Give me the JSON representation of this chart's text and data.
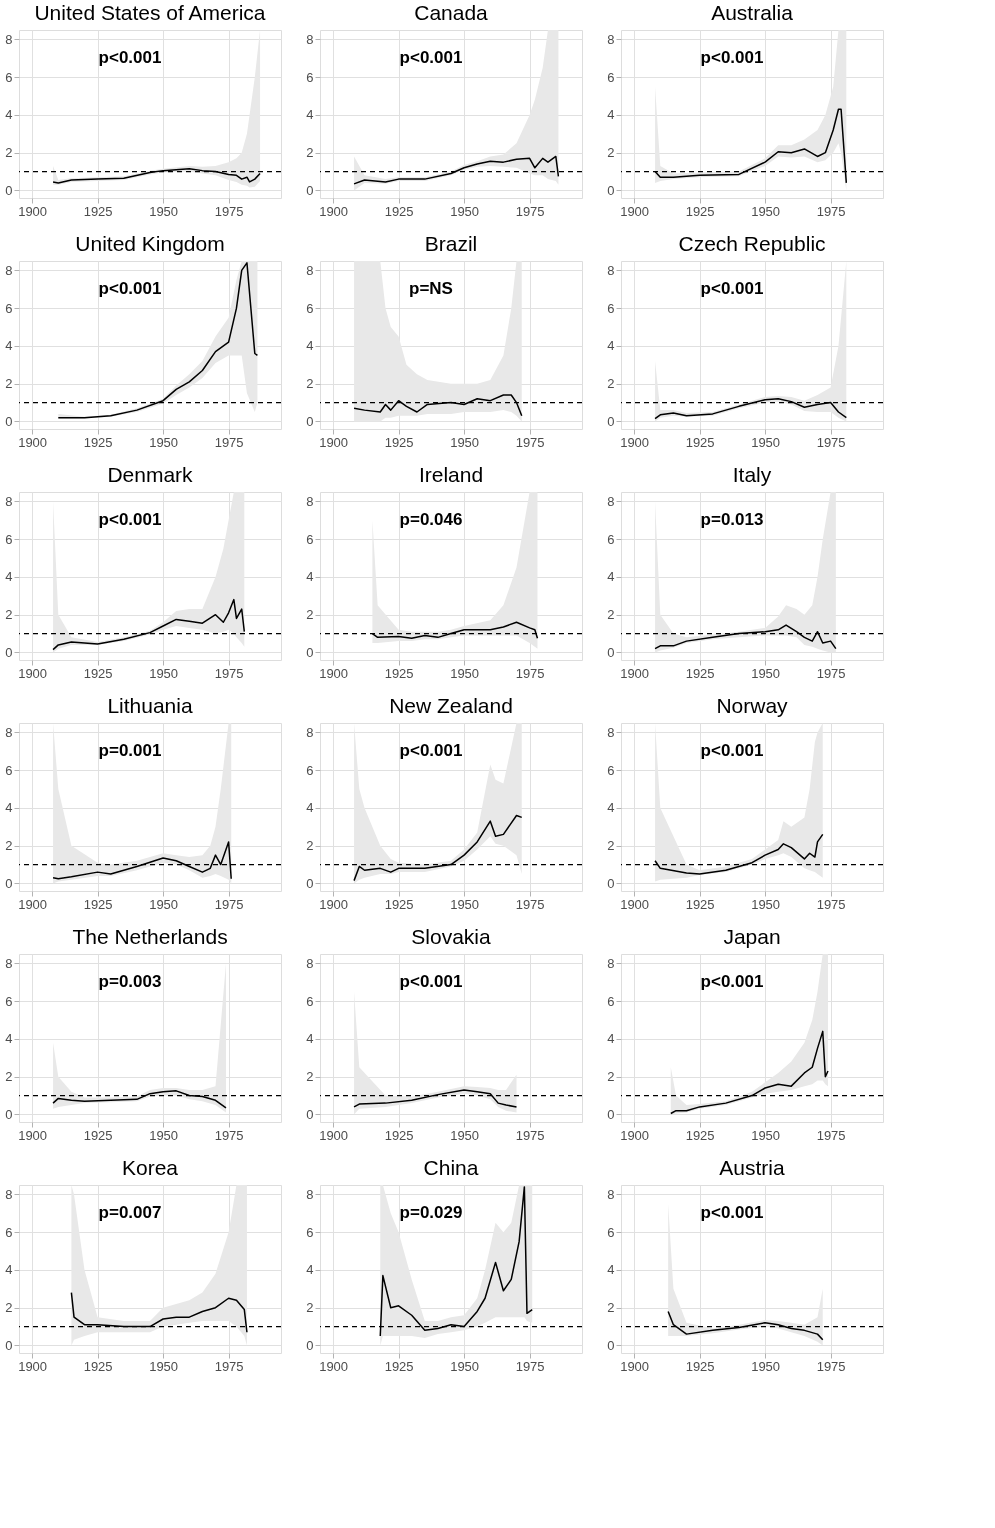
{
  "chart_data": [
    {
      "type": "line",
      "title": "United States of America",
      "annotations": [
        "p<0.001"
      ],
      "xlim": [
        1895,
        1995
      ],
      "ylim": [
        -0.4,
        8.5
      ],
      "xticks": [
        1900,
        1925,
        1950,
        1975
      ],
      "yticks": [
        0,
        2,
        4,
        6,
        8
      ],
      "grid": true,
      "ref_lines": [
        {
          "axis": "y",
          "value": 1,
          "line_style": "dashed",
          "color": "#000000"
        }
      ],
      "series": [
        {
          "color": "#000000",
          "x": [
            1908,
            1910,
            1915,
            1925,
            1935,
            1945,
            1950,
            1960,
            1965,
            1970,
            1975,
            1978,
            1980,
            1982,
            1983,
            1985,
            1987
          ],
          "values": [
            0.45,
            0.4,
            0.55,
            0.6,
            0.65,
            0.95,
            1.05,
            1.15,
            1.05,
            1.0,
            0.85,
            0.8,
            0.6,
            0.7,
            0.45,
            0.6,
            0.9
          ],
          "lower": [
            0.3,
            0.3,
            0.45,
            0.5,
            0.55,
            0.85,
            0.95,
            1.0,
            0.9,
            0.8,
            0.55,
            0.45,
            0.3,
            0.25,
            0.15,
            0.2,
            0.5
          ],
          "upper": [
            1.3,
            0.55,
            0.65,
            0.7,
            0.75,
            1.05,
            1.15,
            1.3,
            1.25,
            1.3,
            1.5,
            1.7,
            2.0,
            3,
            4,
            6,
            8.5
          ]
        }
      ]
    },
    {
      "type": "line",
      "title": "Canada",
      "annotations": [
        "p<0.001"
      ],
      "xlim": [
        1895,
        1995
      ],
      "ylim": [
        -0.4,
        8.5
      ],
      "xticks": [
        1900,
        1925,
        1950,
        1975
      ],
      "yticks": [
        0,
        2,
        4,
        6,
        8
      ],
      "grid": true,
      "ref_lines": [
        {
          "axis": "y",
          "value": 1,
          "line_style": "dashed",
          "color": "#000000"
        }
      ],
      "series": [
        {
          "color": "#000000",
          "x": [
            1908,
            1912,
            1920,
            1925,
            1935,
            1945,
            1950,
            1955,
            1960,
            1965,
            1970,
            1975,
            1977,
            1980,
            1982,
            1985,
            1986
          ],
          "values": [
            0.35,
            0.55,
            0.45,
            0.6,
            0.6,
            0.9,
            1.2,
            1.4,
            1.55,
            1.5,
            1.65,
            1.7,
            1.2,
            1.7,
            1.5,
            1.8,
            0.75
          ],
          "lower": [
            0,
            0.4,
            0.35,
            0.5,
            0.5,
            0.8,
            1.1,
            1.25,
            1.3,
            1.25,
            1.2,
            0.9,
            0.8,
            0.8,
            0.6,
            0.5,
            0.3
          ],
          "upper": [
            1.8,
            0.8,
            0.6,
            0.7,
            0.7,
            1.0,
            1.35,
            1.55,
            1.8,
            1.9,
            2.5,
            4,
            4.8,
            6.5,
            8.5,
            8.5,
            8.5
          ]
        }
      ]
    },
    {
      "type": "line",
      "title": "Australia",
      "annotations": [
        "p<0.001"
      ],
      "xlim": [
        1895,
        1995
      ],
      "ylim": [
        -0.4,
        8.5
      ],
      "xticks": [
        1900,
        1925,
        1950,
        1975
      ],
      "yticks": [
        0,
        2,
        4,
        6,
        8
      ],
      "grid": true,
      "ref_lines": [
        {
          "axis": "y",
          "value": 1,
          "line_style": "dashed",
          "color": "#000000"
        }
      ],
      "series": [
        {
          "color": "#000000",
          "x": [
            1908,
            1910,
            1915,
            1925,
            1940,
            1950,
            1955,
            1960,
            1965,
            1970,
            1973,
            1976,
            1978,
            1979,
            1981
          ],
          "values": [
            1.0,
            0.7,
            0.7,
            0.8,
            0.85,
            1.5,
            2.05,
            2.0,
            2.2,
            1.8,
            2.0,
            3.2,
            4.3,
            4.3,
            0.4
          ],
          "lower": [
            0.4,
            0.5,
            0.6,
            0.7,
            0.75,
            1.3,
            1.8,
            1.75,
            1.8,
            1.5,
            1.6,
            2,
            2.5,
            2,
            0
          ],
          "upper": [
            5.5,
            1.3,
            0.9,
            0.95,
            1.0,
            1.7,
            2.4,
            2.4,
            2.7,
            3.2,
            4,
            5.5,
            8.5,
            8.5,
            8.5
          ]
        }
      ]
    },
    {
      "type": "line",
      "title": "United Kingdom",
      "annotations": [
        "p<0.001"
      ],
      "xlim": [
        1895,
        1995
      ],
      "ylim": [
        -0.4,
        8.5
      ],
      "xticks": [
        1900,
        1925,
        1950,
        1975
      ],
      "yticks": [
        0,
        2,
        4,
        6,
        8
      ],
      "grid": true,
      "ref_lines": [
        {
          "axis": "y",
          "value": 1,
          "line_style": "dashed",
          "color": "#000000"
        }
      ],
      "series": [
        {
          "color": "#000000",
          "x": [
            1910,
            1920,
            1930,
            1940,
            1950,
            1955,
            1960,
            1965,
            1970,
            1975,
            1978,
            1980,
            1982,
            1985,
            1986
          ],
          "values": [
            0.2,
            0.2,
            0.3,
            0.6,
            1.1,
            1.7,
            2.1,
            2.7,
            3.7,
            4.2,
            6,
            8,
            8.4,
            3.6,
            3.5
          ],
          "lower": [
            0.15,
            0.15,
            0.25,
            0.5,
            0.95,
            1.4,
            1.8,
            2.3,
            3.1,
            3.5,
            3.5,
            3.5,
            1.5,
            0.5,
            1
          ],
          "upper": [
            0.4,
            0.25,
            0.35,
            0.7,
            1.2,
            1.9,
            2.5,
            3.2,
            4.5,
            5.5,
            7.5,
            8.5,
            8.5,
            8.5,
            8.5
          ]
        }
      ]
    },
    {
      "type": "line",
      "title": "Brazil",
      "annotations": [
        "p=NS"
      ],
      "xlim": [
        1895,
        1995
      ],
      "ylim": [
        -0.4,
        8.5
      ],
      "xticks": [
        1900,
        1925,
        1950,
        1975
      ],
      "yticks": [
        0,
        2,
        4,
        6,
        8
      ],
      "grid": true,
      "ref_lines": [
        {
          "axis": "y",
          "value": 1,
          "line_style": "dashed",
          "color": "#000000"
        }
      ],
      "series": [
        {
          "color": "#000000",
          "x": [
            1908,
            1912,
            1918,
            1920,
            1922,
            1925,
            1928,
            1932,
            1936,
            1945,
            1950,
            1955,
            1960,
            1965,
            1968,
            1970,
            1972
          ],
          "values": [
            0.7,
            0.6,
            0.5,
            0.9,
            0.6,
            1.1,
            0.8,
            0.5,
            0.9,
            1.0,
            0.9,
            1.2,
            1.1,
            1.4,
            1.4,
            1.0,
            0.3
          ],
          "lower": [
            0,
            0,
            0,
            0.2,
            0.2,
            0.3,
            0.3,
            0.3,
            0.4,
            0.4,
            0.5,
            0.5,
            0.5,
            0.6,
            0.5,
            0.3,
            0
          ],
          "upper": [
            8.5,
            8.5,
            8.5,
            6,
            5,
            4.5,
            3,
            2.5,
            2.2,
            2.0,
            2.0,
            2.0,
            2.2,
            3.5,
            6,
            8.5,
            8.5
          ]
        }
      ]
    },
    {
      "type": "line",
      "title": "Czech Republic",
      "annotations": [
        "p<0.001"
      ],
      "xlim": [
        1895,
        1995
      ],
      "ylim": [
        -0.4,
        8.5
      ],
      "xticks": [
        1900,
        1925,
        1950,
        1975
      ],
      "yticks": [
        0,
        2,
        4,
        6,
        8
      ],
      "grid": true,
      "ref_lines": [
        {
          "axis": "y",
          "value": 1,
          "line_style": "dashed",
          "color": "#000000"
        }
      ],
      "series": [
        {
          "color": "#000000",
          "x": [
            1908,
            1910,
            1915,
            1920,
            1930,
            1940,
            1950,
            1955,
            1960,
            1965,
            1970,
            1975,
            1978,
            1981
          ],
          "values": [
            0.15,
            0.35,
            0.45,
            0.3,
            0.4,
            0.8,
            1.15,
            1.2,
            1.05,
            0.75,
            0.9,
            1.0,
            0.5,
            0.2
          ],
          "lower": [
            0,
            0.2,
            0.3,
            0.25,
            0.3,
            0.7,
            1.0,
            1.05,
            0.9,
            0.55,
            0.5,
            0.5,
            0.2,
            0
          ],
          "upper": [
            3.2,
            0.6,
            0.6,
            0.45,
            0.5,
            0.9,
            1.3,
            1.35,
            1.3,
            1.1,
            1.4,
            1.8,
            4,
            8.5
          ]
        }
      ]
    },
    {
      "type": "line",
      "title": "Denmark",
      "annotations": [
        "p<0.001"
      ],
      "xlim": [
        1895,
        1995
      ],
      "ylim": [
        -0.4,
        8.5
      ],
      "xticks": [
        1900,
        1925,
        1950,
        1975
      ],
      "yticks": [
        0,
        2,
        4,
        6,
        8
      ],
      "grid": true,
      "ref_lines": [
        {
          "axis": "y",
          "value": 1,
          "line_style": "dashed",
          "color": "#000000"
        }
      ],
      "series": [
        {
          "color": "#000000",
          "x": [
            1908,
            1910,
            1915,
            1925,
            1935,
            1945,
            1950,
            1955,
            1960,
            1965,
            1970,
            1973,
            1975,
            1977,
            1978,
            1980,
            1981
          ],
          "values": [
            0.15,
            0.4,
            0.55,
            0.45,
            0.7,
            1.05,
            1.4,
            1.75,
            1.65,
            1.55,
            2.0,
            1.6,
            2.1,
            2.8,
            1.8,
            2.3,
            1.1
          ],
          "lower": [
            0,
            0.2,
            0.4,
            0.4,
            0.6,
            0.95,
            1.2,
            1.4,
            1.3,
            1.2,
            1.0,
            1.1,
            1.2,
            1.0,
            0.8,
            0.5,
            0.3
          ],
          "upper": [
            8,
            2,
            0.8,
            0.55,
            0.8,
            1.15,
            1.6,
            2.2,
            2.3,
            2.3,
            4,
            5.5,
            7,
            8.5,
            8.5,
            8.5,
            8.5
          ]
        }
      ]
    },
    {
      "type": "line",
      "title": "Ireland",
      "annotations": [
        "p=0.046"
      ],
      "xlim": [
        1895,
        1995
      ],
      "ylim": [
        -0.4,
        8.5
      ],
      "xticks": [
        1900,
        1925,
        1950,
        1975
      ],
      "yticks": [
        0,
        2,
        4,
        6,
        8
      ],
      "grid": true,
      "ref_lines": [
        {
          "axis": "y",
          "value": 1,
          "line_style": "dashed",
          "color": "#000000"
        }
      ],
      "series": [
        {
          "color": "#000000",
          "x": [
            1915,
            1917,
            1925,
            1930,
            1935,
            1940,
            1945,
            1950,
            1960,
            1965,
            1970,
            1975,
            1977,
            1978
          ],
          "values": [
            1.0,
            0.8,
            0.85,
            0.75,
            0.9,
            0.8,
            1.0,
            1.2,
            1.2,
            1.35,
            1.6,
            1.3,
            1.2,
            0.75
          ],
          "lower": [
            0.5,
            0.5,
            0.6,
            0.6,
            0.7,
            0.7,
            0.8,
            0.9,
            0.9,
            0.9,
            0.9,
            0.5,
            0.3,
            0.2
          ],
          "upper": [
            7,
            2.5,
            1.2,
            1.1,
            1.1,
            1.1,
            1.2,
            1.4,
            1.7,
            2.5,
            4.5,
            8.5,
            8.5,
            8.5
          ]
        }
      ]
    },
    {
      "type": "line",
      "title": "Italy",
      "annotations": [
        "p=0.013"
      ],
      "xlim": [
        1895,
        1995
      ],
      "ylim": [
        -0.4,
        8.5
      ],
      "xticks": [
        1900,
        1925,
        1950,
        1975
      ],
      "yticks": [
        0,
        2,
        4,
        6,
        8
      ],
      "grid": true,
      "ref_lines": [
        {
          "axis": "y",
          "value": 1,
          "line_style": "dashed",
          "color": "#000000"
        }
      ],
      "series": [
        {
          "color": "#000000",
          "x": [
            1908,
            1910,
            1915,
            1920,
            1930,
            1940,
            1950,
            1955,
            1958,
            1962,
            1965,
            1968,
            1970,
            1972,
            1975,
            1977
          ],
          "values": [
            0.2,
            0.35,
            0.35,
            0.6,
            0.8,
            1.0,
            1.1,
            1.2,
            1.45,
            1.1,
            0.8,
            0.6,
            1.1,
            0.5,
            0.6,
            0.2
          ],
          "lower": [
            0,
            0.1,
            0.25,
            0.5,
            0.7,
            0.8,
            0.9,
            0.9,
            0.9,
            0.8,
            0.4,
            0.3,
            0.2,
            0.1,
            0,
            0
          ],
          "upper": [
            8,
            2,
            1,
            0.8,
            0.95,
            1.1,
            1.3,
            1.9,
            2.5,
            2.3,
            2.0,
            2.5,
            4,
            6,
            8.5,
            8.5
          ]
        }
      ]
    },
    {
      "type": "line",
      "title": "Lithuania",
      "annotations": [
        "p=0.001"
      ],
      "xlim": [
        1895,
        1995
      ],
      "ylim": [
        -0.4,
        8.5
      ],
      "xticks": [
        1900,
        1925,
        1950,
        1975
      ],
      "yticks": [
        0,
        2,
        4,
        6,
        8
      ],
      "grid": true,
      "ref_lines": [
        {
          "axis": "y",
          "value": 1,
          "line_style": "dashed",
          "color": "#000000"
        }
      ],
      "series": [
        {
          "color": "#000000",
          "x": [
            1908,
            1910,
            1915,
            1925,
            1930,
            1940,
            1950,
            1955,
            1960,
            1965,
            1968,
            1970,
            1972,
            1975,
            1976
          ],
          "values": [
            0.3,
            0.25,
            0.35,
            0.6,
            0.5,
            0.9,
            1.35,
            1.2,
            0.9,
            0.6,
            0.8,
            1.5,
            1.0,
            2.2,
            0.25
          ],
          "lower": [
            0,
            0.1,
            0.2,
            0.4,
            0.4,
            0.7,
            1.1,
            1.0,
            0.7,
            0.3,
            0.4,
            0.5,
            0.4,
            0.2,
            0
          ],
          "upper": [
            8.5,
            5,
            2,
            1.1,
            1.0,
            1.2,
            1.6,
            1.5,
            1.4,
            1.5,
            2,
            3,
            5,
            8.5,
            8.5
          ]
        }
      ]
    },
    {
      "type": "line",
      "title": "New Zealand",
      "annotations": [
        "p<0.001"
      ],
      "xlim": [
        1895,
        1995
      ],
      "ylim": [
        -0.4,
        8.5
      ],
      "xticks": [
        1900,
        1925,
        1950,
        1975
      ],
      "yticks": [
        0,
        2,
        4,
        6,
        8
      ],
      "grid": true,
      "ref_lines": [
        {
          "axis": "y",
          "value": 1,
          "line_style": "dashed",
          "color": "#000000"
        }
      ],
      "series": [
        {
          "color": "#000000",
          "x": [
            1908,
            1910,
            1912,
            1918,
            1922,
            1925,
            1935,
            1945,
            1950,
            1955,
            1960,
            1962,
            1965,
            1970,
            1972
          ],
          "values": [
            0.15,
            0.9,
            0.7,
            0.8,
            0.6,
            0.8,
            0.8,
            1.0,
            1.5,
            2.2,
            3.3,
            2.5,
            2.6,
            3.6,
            3.5
          ],
          "lower": [
            0,
            0.2,
            0.3,
            0.5,
            0.5,
            0.6,
            0.6,
            0.9,
            1.2,
            1.8,
            2.5,
            2.1,
            2,
            1.5,
            0.5
          ],
          "upper": [
            8.5,
            5,
            4,
            2,
            1.3,
            1.1,
            1.0,
            1.2,
            1.8,
            2.7,
            6.3,
            5.5,
            5.3,
            8.5,
            8.5
          ]
        }
      ]
    },
    {
      "type": "line",
      "title": "Norway",
      "annotations": [
        "p<0.001"
      ],
      "xlim": [
        1895,
        1995
      ],
      "ylim": [
        -0.4,
        8.5
      ],
      "xticks": [
        1900,
        1925,
        1950,
        1975
      ],
      "yticks": [
        0,
        2,
        4,
        6,
        8
      ],
      "grid": true,
      "ref_lines": [
        {
          "axis": "y",
          "value": 1,
          "line_style": "dashed",
          "color": "#000000"
        }
      ],
      "series": [
        {
          "color": "#000000",
          "x": [
            1908,
            1910,
            1920,
            1925,
            1935,
            1945,
            1950,
            1955,
            1957,
            1960,
            1965,
            1967,
            1969,
            1970,
            1972
          ],
          "values": [
            1.2,
            0.8,
            0.55,
            0.5,
            0.7,
            1.1,
            1.5,
            1.8,
            2.1,
            1.9,
            1.3,
            1.6,
            1.4,
            2.2,
            2.6
          ],
          "lower": [
            0.1,
            0.2,
            0.3,
            0.45,
            0.6,
            1.0,
            1.3,
            1.5,
            1.6,
            1.4,
            0.8,
            0.7,
            0.6,
            0.5,
            0.3
          ],
          "upper": [
            8.5,
            4,
            1.0,
            0.7,
            0.9,
            1.3,
            1.8,
            2.3,
            3.3,
            3,
            3.5,
            5,
            7.5,
            8,
            8.5
          ]
        }
      ]
    },
    {
      "type": "line",
      "title": "The Netherlands",
      "annotations": [
        "p=0.003"
      ],
      "xlim": [
        1895,
        1995
      ],
      "ylim": [
        -0.4,
        8.5
      ],
      "xticks": [
        1900,
        1925,
        1950,
        1975
      ],
      "yticks": [
        0,
        2,
        4,
        6,
        8
      ],
      "grid": true,
      "ref_lines": [
        {
          "axis": "y",
          "value": 1,
          "line_style": "dashed",
          "color": "#000000"
        }
      ],
      "series": [
        {
          "color": "#000000",
          "x": [
            1908,
            1910,
            1915,
            1920,
            1930,
            1940,
            1945,
            1950,
            1955,
            1960,
            1965,
            1970,
            1974
          ],
          "values": [
            0.6,
            0.85,
            0.75,
            0.7,
            0.75,
            0.8,
            1.1,
            1.2,
            1.25,
            1.0,
            0.95,
            0.75,
            0.35
          ],
          "lower": [
            0.3,
            0.4,
            0.5,
            0.6,
            0.65,
            0.7,
            0.95,
            1.0,
            1.0,
            0.8,
            0.7,
            0.5,
            0.1
          ],
          "upper": [
            3.8,
            2,
            1.2,
            0.9,
            0.9,
            0.95,
            1.3,
            1.4,
            1.4,
            1.3,
            1.3,
            1.5,
            8
          ]
        }
      ]
    },
    {
      "type": "line",
      "title": "Slovakia",
      "annotations": [
        "p<0.001"
      ],
      "xlim": [
        1895,
        1995
      ],
      "ylim": [
        -0.4,
        8.5
      ],
      "xticks": [
        1900,
        1925,
        1950,
        1975
      ],
      "yticks": [
        0,
        2,
        4,
        6,
        8
      ],
      "grid": true,
      "ref_lines": [
        {
          "axis": "y",
          "value": 1,
          "line_style": "dashed",
          "color": "#000000"
        }
      ],
      "series": [
        {
          "color": "#000000",
          "x": [
            1908,
            1910,
            1920,
            1930,
            1940,
            1950,
            1955,
            1960,
            1963,
            1966,
            1970
          ],
          "values": [
            0.4,
            0.55,
            0.6,
            0.75,
            1.05,
            1.3,
            1.2,
            1.1,
            0.6,
            0.5,
            0.4
          ],
          "lower": [
            0,
            0.3,
            0.4,
            0.6,
            0.9,
            1.1,
            1.0,
            0.8,
            0.4,
            0.2,
            0.1
          ],
          "upper": [
            6.5,
            2.5,
            1.0,
            0.95,
            1.2,
            1.5,
            1.45,
            1.4,
            1.3,
            1.3,
            2.1
          ]
        }
      ]
    },
    {
      "type": "line",
      "title": "Japan",
      "annotations": [
        "p<0.001"
      ],
      "xlim": [
        1895,
        1995
      ],
      "ylim": [
        -0.4,
        8.5
      ],
      "xticks": [
        1900,
        1925,
        1950,
        1975
      ],
      "yticks": [
        0,
        2,
        4,
        6,
        8
      ],
      "grid": true,
      "ref_lines": [
        {
          "axis": "y",
          "value": 1,
          "line_style": "dashed",
          "color": "#000000"
        }
      ],
      "series": [
        {
          "color": "#000000",
          "x": [
            1914,
            1916,
            1920,
            1925,
            1935,
            1945,
            1950,
            1955,
            1960,
            1965,
            1968,
            1970,
            1972,
            1973,
            1974
          ],
          "values": [
            0.05,
            0.2,
            0.2,
            0.4,
            0.6,
            1.0,
            1.4,
            1.6,
            1.5,
            2.2,
            2.5,
            3.5,
            4.4,
            2.0,
            2.3
          ],
          "lower": [
            0,
            0.05,
            0.1,
            0.3,
            0.5,
            0.9,
            1.1,
            1.2,
            1.3,
            1.5,
            1.6,
            1.8,
            1.8,
            1.6,
            1.5
          ],
          "upper": [
            2.5,
            1,
            0.5,
            0.55,
            0.7,
            1.2,
            1.7,
            2.2,
            2.8,
            3.8,
            5,
            6.5,
            8.5,
            8.5,
            8.5
          ]
        }
      ]
    },
    {
      "type": "line",
      "title": "Korea",
      "annotations": [
        "p=0.007"
      ],
      "xlim": [
        1895,
        1995
      ],
      "ylim": [
        -0.4,
        8.5
      ],
      "xticks": [
        1900,
        1925,
        1950,
        1975
      ],
      "yticks": [
        0,
        2,
        4,
        6,
        8
      ],
      "grid": true,
      "ref_lines": [
        {
          "axis": "y",
          "value": 1,
          "line_style": "dashed",
          "color": "#000000"
        }
      ],
      "series": [
        {
          "color": "#000000",
          "x": [
            1915,
            1916,
            1920,
            1925,
            1935,
            1945,
            1950,
            1955,
            1960,
            1965,
            1970,
            1975,
            1978,
            1981,
            1982
          ],
          "values": [
            2.8,
            1.5,
            1.1,
            1.1,
            1.0,
            1.0,
            1.4,
            1.5,
            1.5,
            1.8,
            2.0,
            2.5,
            2.4,
            1.9,
            0.7
          ],
          "lower": [
            0,
            0.3,
            0.5,
            0.7,
            0.7,
            0.7,
            1.0,
            1.1,
            1.2,
            1.3,
            1.3,
            1.3,
            1.0,
            0.5,
            0
          ],
          "upper": [
            8.5,
            8,
            4,
            1.5,
            1.3,
            1.3,
            2.0,
            2.2,
            2.4,
            2.8,
            3.8,
            6,
            8.5,
            8.5,
            8.5
          ]
        }
      ]
    },
    {
      "type": "line",
      "title": "China",
      "annotations": [
        "p=0.029"
      ],
      "xlim": [
        1895,
        1995
      ],
      "ylim": [
        -0.4,
        8.5
      ],
      "xticks": [
        1900,
        1925,
        1950,
        1975
      ],
      "yticks": [
        0,
        2,
        4,
        6,
        8
      ],
      "grid": true,
      "ref_lines": [
        {
          "axis": "y",
          "value": 1,
          "line_style": "dashed",
          "color": "#000000"
        }
      ],
      "series": [
        {
          "color": "#000000",
          "x": [
            1918,
            1919,
            1922,
            1925,
            1930,
            1935,
            1940,
            1945,
            1950,
            1955,
            1958,
            1962,
            1965,
            1968,
            1971,
            1973,
            1974,
            1976
          ],
          "values": [
            0.5,
            3.7,
            2.0,
            2.1,
            1.6,
            0.8,
            0.9,
            1.1,
            1.0,
            1.8,
            2.5,
            4.4,
            2.9,
            3.5,
            5.5,
            8.4,
            1.7,
            1.9
          ],
          "lower": [
            0,
            0.5,
            0.5,
            0.5,
            0.5,
            0.4,
            0.6,
            0.7,
            0.8,
            1.0,
            1.2,
            1.5,
            1.5,
            1.5,
            1.5,
            1.5,
            1.3,
            1.2
          ],
          "upper": [
            8.5,
            8.5,
            7,
            6,
            3.5,
            1.3,
            1.3,
            1.5,
            1.6,
            2.5,
            4,
            6.5,
            6,
            6.5,
            8.5,
            8.5,
            8.5,
            8.5
          ]
        }
      ]
    },
    {
      "type": "line",
      "title": "Austria",
      "annotations": [
        "p<0.001"
      ],
      "xlim": [
        1895,
        1995
      ],
      "ylim": [
        -0.4,
        8.5
      ],
      "xticks": [
        1900,
        1925,
        1950,
        1975
      ],
      "yticks": [
        0,
        2,
        4,
        6,
        8
      ],
      "grid": true,
      "ref_lines": [
        {
          "axis": "y",
          "value": 1,
          "line_style": "dashed",
          "color": "#000000"
        }
      ],
      "series": [
        {
          "color": "#000000",
          "x": [
            1913,
            1915,
            1920,
            1930,
            1940,
            1950,
            1955,
            1960,
            1965,
            1970,
            1972
          ],
          "values": [
            1.8,
            1.1,
            0.6,
            0.8,
            0.95,
            1.2,
            1.1,
            0.9,
            0.8,
            0.6,
            0.3
          ],
          "lower": [
            0.5,
            0.5,
            0.5,
            0.65,
            0.85,
            1.0,
            0.9,
            0.7,
            0.5,
            0.2,
            0
          ],
          "upper": [
            7.5,
            3,
            1.2,
            0.9,
            1.1,
            1.35,
            1.3,
            1.2,
            1.1,
            1.5,
            3
          ]
        }
      ]
    }
  ]
}
